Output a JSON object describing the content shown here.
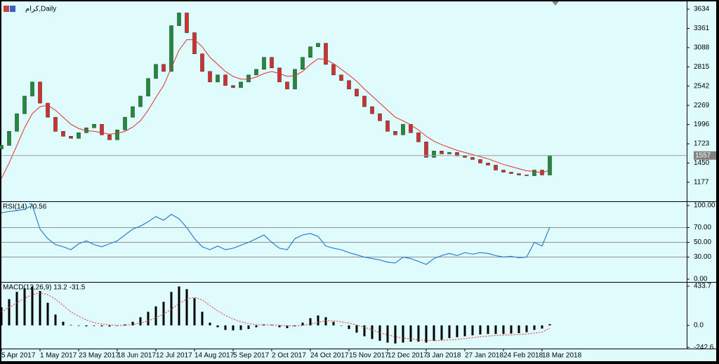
{
  "chart_data": [
    {
      "type": "candlestick",
      "title": "كرام,Daily",
      "categories": [
        "5 Apr 2017",
        null,
        null,
        null,
        null,
        "1 May 2017",
        null,
        null,
        null,
        null,
        "23 May 2017",
        null,
        null,
        null,
        null,
        "18 Jun 2017",
        null,
        null,
        null,
        null,
        "12 Jul 2017",
        null,
        null,
        null,
        null,
        "14 Aug 2017",
        null,
        null,
        null,
        null,
        "5 Sep 2017",
        null,
        null,
        null,
        null,
        "2 Oct 2017",
        null,
        null,
        null,
        null,
        "24 Oct 2017",
        null,
        null,
        null,
        null,
        "15 Nov 2017",
        null,
        null,
        null,
        null,
        "12 Dec 2017",
        null,
        null,
        null,
        null,
        "3 Jan 2018",
        null,
        null,
        null,
        null,
        "27 Jan 2018",
        null,
        null,
        null,
        null,
        "24 Feb 2018",
        null,
        null,
        null,
        null,
        "18 Mar 2018",
        null
      ],
      "open": [
        1650,
        1700,
        1900,
        2150,
        2400,
        2600,
        2300,
        2100,
        1900,
        1830,
        1800,
        1880,
        1950,
        2000,
        1850,
        1780,
        1920,
        2100,
        2250,
        2400,
        2650,
        2850,
        2750,
        3400,
        3580,
        3300,
        3000,
        2750,
        2600,
        2700,
        2550,
        2520,
        2600,
        2700,
        2780,
        2950,
        2800,
        2600,
        2500,
        2780,
        2950,
        3100,
        3150,
        2850,
        2700,
        2620,
        2500,
        2400,
        2250,
        2150,
        2050,
        1900,
        1850,
        2000,
        1880,
        1750,
        1530,
        1620,
        1580,
        1600,
        1550,
        1530,
        1500,
        1450,
        1420,
        1350,
        1320,
        1300,
        1280,
        1270,
        1350,
        1280
      ],
      "close": [
        1700,
        1900,
        2150,
        2400,
        2600,
        2300,
        2100,
        1900,
        1830,
        1800,
        1880,
        1950,
        2000,
        1850,
        1780,
        1920,
        2100,
        2250,
        2400,
        2650,
        2850,
        2750,
        3400,
        3580,
        3300,
        3000,
        2750,
        2600,
        2700,
        2550,
        2520,
        2600,
        2700,
        2780,
        2950,
        2800,
        2600,
        2500,
        2780,
        2950,
        3100,
        3150,
        2850,
        2700,
        2620,
        2500,
        2400,
        2250,
        2150,
        2050,
        1900,
        1850,
        2000,
        1880,
        1750,
        1530,
        1620,
        1580,
        1600,
        1550,
        1530,
        1500,
        1450,
        1420,
        1350,
        1320,
        1300,
        1280,
        1270,
        1350,
        1280,
        1557
      ],
      "up_color": "#1e8c3a",
      "down_color": "#d32f2f",
      "overlay": {
        "color": "#e03030",
        "values": [
          1230,
          1450,
          1700,
          1950,
          2150,
          2250,
          2270,
          2200,
          2100,
          2000,
          1940,
          1910,
          1900,
          1880,
          1860,
          1870,
          1900,
          1960,
          2050,
          2200,
          2380,
          2550,
          2800,
          3050,
          3200,
          3200,
          3100,
          2950,
          2850,
          2750,
          2680,
          2640,
          2640,
          2670,
          2720,
          2750,
          2720,
          2680,
          2690,
          2750,
          2850,
          2930,
          2920,
          2860,
          2780,
          2700,
          2610,
          2500,
          2400,
          2300,
          2200,
          2100,
          2050,
          1990,
          1920,
          1830,
          1760,
          1710,
          1670,
          1630,
          1600,
          1570,
          1540,
          1510,
          1470,
          1430,
          1400,
          1370,
          1340,
          1330,
          1310,
          1350
        ]
      },
      "ylim": [
        907,
        3714
      ],
      "yticks": [
        3634,
        3361,
        3088,
        2815,
        2542,
        2269,
        1996,
        1723,
        1450,
        1177
      ]
    },
    {
      "type": "line",
      "title": "RSI(14) 70.56",
      "color": "#2f7fd0",
      "values": [
        90,
        92,
        93,
        95,
        100,
        68,
        55,
        47,
        44,
        40,
        48,
        52,
        47,
        44,
        48,
        52,
        60,
        68,
        72,
        78,
        85,
        80,
        88,
        82,
        70,
        55,
        44,
        40,
        45,
        40,
        42,
        46,
        50,
        55,
        60,
        50,
        42,
        40,
        55,
        60,
        62,
        58,
        45,
        42,
        40,
        36,
        33,
        30,
        28,
        26,
        23,
        22,
        30,
        28,
        24,
        20,
        28,
        32,
        35,
        32,
        36,
        34,
        36,
        35,
        32,
        30,
        31,
        29,
        30,
        50,
        45,
        70.56
      ],
      "ylim": [
        -3.8,
        104.8
      ],
      "yticks": [
        {
          "value": 100,
          "label": "100.00"
        },
        {
          "value": 70,
          "label": "70.00"
        },
        {
          "value": 50,
          "label": "50.00"
        },
        {
          "value": 30,
          "label": "30.00"
        },
        {
          "value": 0,
          "label": "0.00"
        }
      ],
      "levels": [
        70,
        50,
        30
      ]
    },
    {
      "type": "macd",
      "title": "MACD(12,26,9) 13.2 -31.5",
      "color": "#000000",
      "signal_color": "#e03030",
      "values": [
        200,
        290,
        370,
        410,
        430,
        380,
        250,
        120,
        40,
        5,
        -5,
        -10,
        -5,
        -10,
        -12,
        -5,
        10,
        40,
        90,
        150,
        210,
        260,
        370,
        430,
        400,
        300,
        150,
        30,
        -20,
        -50,
        -55,
        -50,
        -40,
        -20,
        10,
        5,
        -20,
        -30,
        -10,
        30,
        80,
        110,
        90,
        40,
        0,
        -40,
        -80,
        -120,
        -150,
        -170,
        -190,
        -200,
        -190,
        -180,
        -180,
        -190,
        -170,
        -160,
        -140,
        -130,
        -120,
        -110,
        -100,
        -95,
        -95,
        -95,
        -90,
        -85,
        -75,
        -50,
        -35,
        13.2
      ],
      "signal": [
        150,
        200,
        250,
        300,
        340,
        360,
        340,
        290,
        220,
        150,
        100,
        60,
        30,
        15,
        5,
        0,
        2,
        10,
        25,
        50,
        85,
        125,
        180,
        240,
        290,
        310,
        280,
        220,
        160,
        110,
        70,
        40,
        20,
        8,
        5,
        5,
        0,
        -5,
        -6,
        0,
        15,
        35,
        50,
        50,
        40,
        25,
        5,
        -20,
        -50,
        -80,
        -105,
        -125,
        -140,
        -150,
        -160,
        -165,
        -168,
        -165,
        -160,
        -155,
        -145,
        -135,
        -125,
        -118,
        -112,
        -108,
        -104,
        -100,
        -95,
        -85,
        -75,
        -31.5
      ],
      "ylim": [
        -256,
        472
      ],
      "yticks": [
        433.7,
        {
          "value": 0,
          "label": "0.0"
        },
        -242.6
      ]
    }
  ]
}
